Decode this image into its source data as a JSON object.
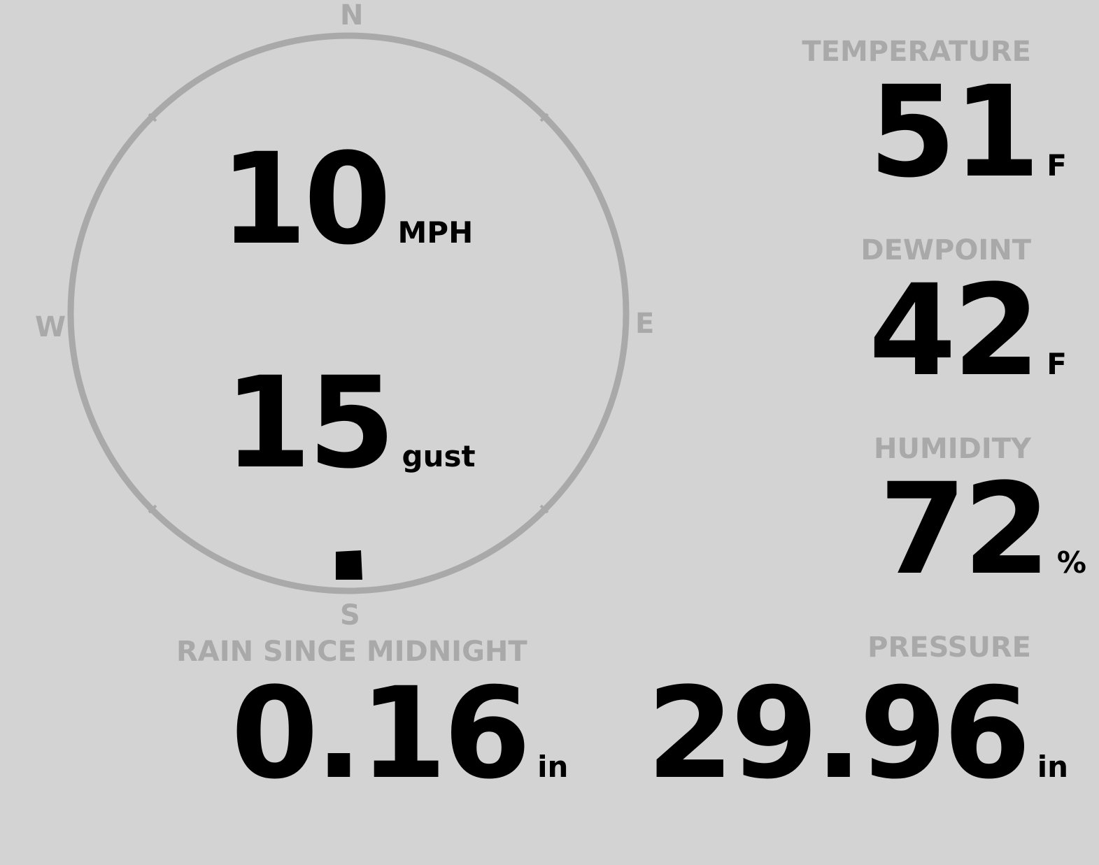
{
  "compass": {
    "n": "N",
    "e": "E",
    "s": "S",
    "w": "W",
    "wind_direction_deg": 180
  },
  "wind": {
    "speed": "10",
    "speed_unit": "MPH",
    "gust": "15",
    "gust_unit": "gust"
  },
  "temperature": {
    "label": "TEMPERATURE",
    "value": "51",
    "unit": "F"
  },
  "dewpoint": {
    "label": "DEWPOINT",
    "value": "42",
    "unit": "F"
  },
  "humidity": {
    "label": "HUMIDITY",
    "value": "72",
    "unit": "%"
  },
  "rain": {
    "label": "RAIN SINCE MIDNIGHT",
    "value": "0.16",
    "unit": "in"
  },
  "pressure": {
    "label": "PRESSURE",
    "value": "29.96",
    "unit": "in"
  },
  "colors": {
    "background": "#d3d3d3",
    "label": "#a9a9a9",
    "value": "#000000"
  }
}
